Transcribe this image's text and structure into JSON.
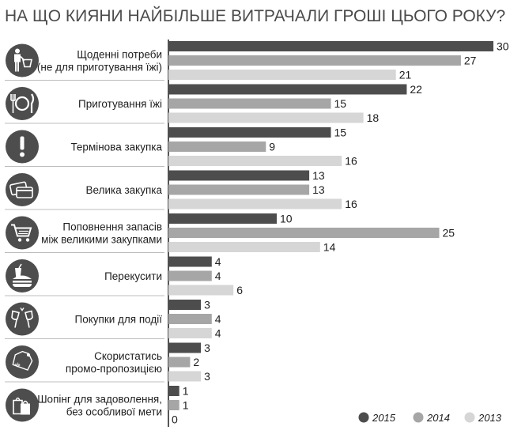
{
  "chart_data": {
    "type": "bar",
    "orientation": "horizontal",
    "title": "НА ЩО КИЯНИ НАЙБІЛЬШЕ ВИТРАЧАЛИ ГРОШІ ЦЬОГО РОКУ?",
    "categories": [
      {
        "lines": [
          "Щоденні потреби",
          "(не для приготування їжі)"
        ],
        "icon": "person-basket-icon"
      },
      {
        "lines": [
          "Приготування їжі"
        ],
        "icon": "fork-plate-knife-icon"
      },
      {
        "lines": [
          "Термінова закупка"
        ],
        "icon": "exclamation-icon"
      },
      {
        "lines": [
          "Велика закупка"
        ],
        "icon": "credit-cards-icon"
      },
      {
        "lines": [
          "Поповнення запасів",
          "між великими закупками"
        ],
        "icon": "shopping-cart-icon"
      },
      {
        "lines": [
          "Перекусити"
        ],
        "icon": "snack-drink-burger-icon"
      },
      {
        "lines": [
          "Покупки для події"
        ],
        "icon": "champagne-glasses-icon"
      },
      {
        "lines": [
          "Скористатись",
          "промо-пропозицією"
        ],
        "icon": "sale-tag-icon"
      },
      {
        "lines": [
          "Шопінг для задоволення,",
          "без особливої мети"
        ],
        "icon": "shopping-bags-icon"
      }
    ],
    "series": [
      {
        "name": "2015",
        "color": "#4d4d4d",
        "values": [
          30,
          22,
          15,
          13,
          10,
          4,
          3,
          3,
          1
        ]
      },
      {
        "name": "2014",
        "color": "#a6a6a6",
        "values": [
          27,
          15,
          9,
          13,
          25,
          4,
          4,
          2,
          1
        ]
      },
      {
        "name": "2013",
        "color": "#d6d6d6",
        "values": [
          21,
          18,
          16,
          16,
          14,
          6,
          4,
          3,
          0
        ]
      }
    ],
    "xlim": [
      0,
      30
    ],
    "grid": false,
    "legend_position": "bottom-right",
    "icon_color": "#4d4d4d"
  }
}
